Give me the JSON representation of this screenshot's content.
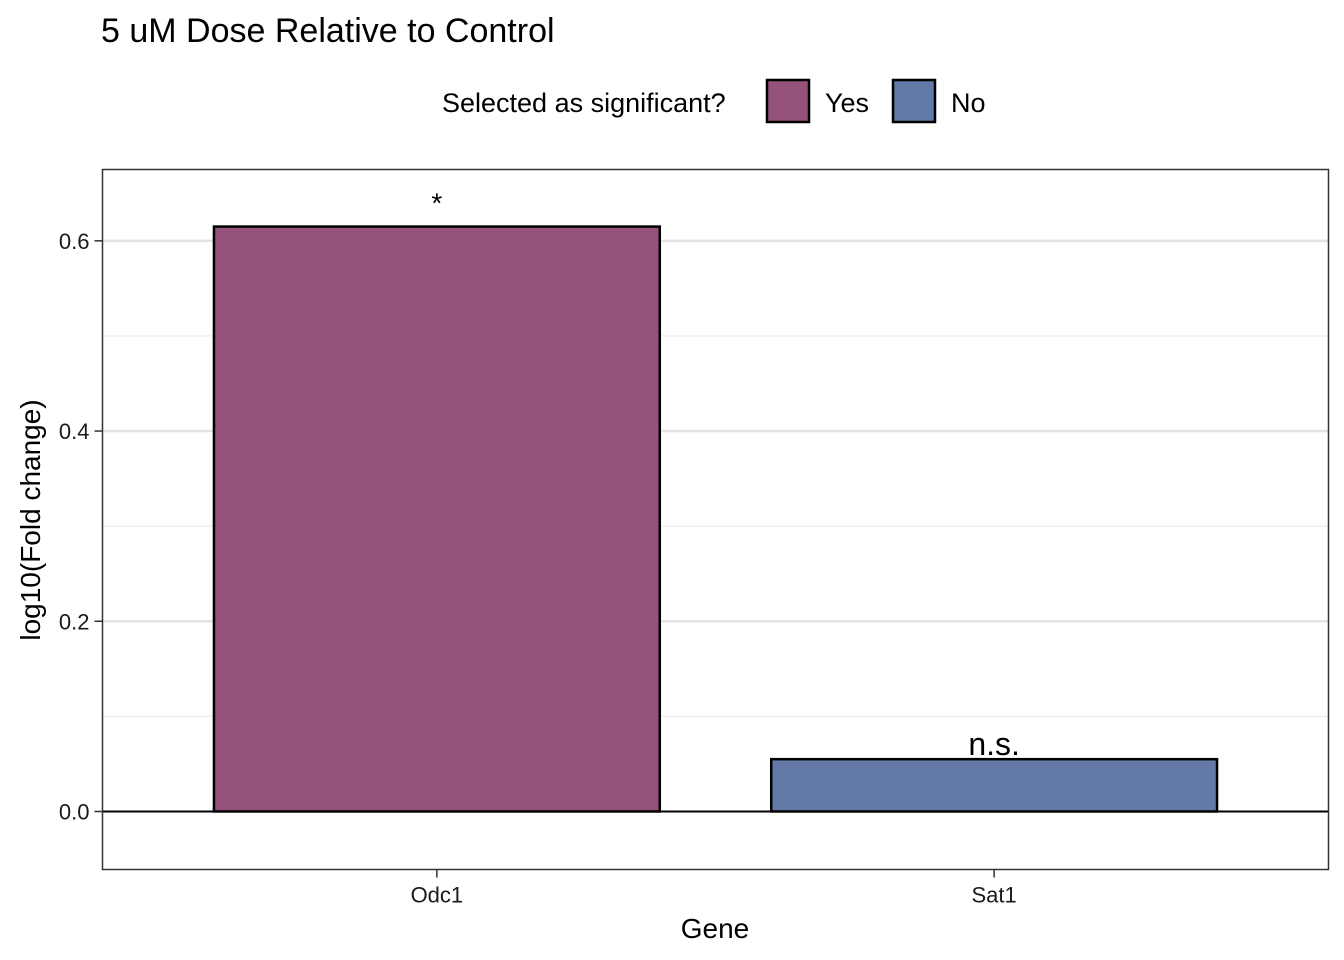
{
  "chart_data": {
    "type": "bar",
    "title": "5 uM Dose Relative to Control",
    "xlabel": "Gene",
    "ylabel": "log10(Fold change)",
    "categories": [
      "Odc1",
      "Sat1"
    ],
    "values": [
      0.615,
      0.055
    ],
    "groups": [
      "Yes",
      "No"
    ],
    "annotations": [
      "*",
      "n.s."
    ],
    "ylim": [
      -0.061,
      0.675
    ],
    "yticks": [
      0.0,
      0.2,
      0.4,
      0.6
    ],
    "ytick_labels": [
      "0.0",
      "0.2",
      "0.4",
      "0.6"
    ],
    "grid": true,
    "legend": {
      "title": "Selected as significant?",
      "position": "top",
      "entries": [
        {
          "label": "Yes",
          "color": "#94527a"
        },
        {
          "label": "No",
          "color": "#637aa8"
        }
      ]
    },
    "colors": {
      "Yes": "#94527a",
      "No": "#637aa8"
    }
  }
}
